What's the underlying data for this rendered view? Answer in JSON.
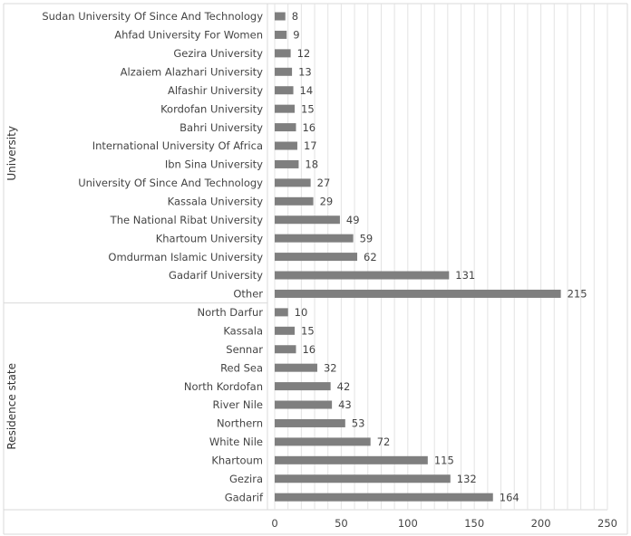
{
  "chart_data": {
    "type": "bar",
    "orientation": "horizontal",
    "grid": true,
    "xlim": [
      0,
      250
    ],
    "x_ticks": [
      "0",
      "50",
      "100",
      "150",
      "200",
      "250"
    ],
    "bar_color": "#7f7f7f",
    "groups": [
      {
        "name": "University",
        "categories": [
          "Sudan University Of Since And Technology",
          "Ahfad University For Women",
          "Gezira University",
          "Alzaiem Alazhari University",
          "Alfashir University",
          "Kordofan University",
          "Bahri University",
          "International University Of Africa",
          "Ibn Sina University",
          "University Of Since And Technology",
          "Kassala University",
          "The National Ribat University",
          "Khartoum University",
          "Omdurman Islamic University",
          "Gadarif University",
          "Other"
        ],
        "values": [
          8,
          9,
          12,
          13,
          14,
          15,
          16,
          17,
          18,
          27,
          29,
          49,
          59,
          62,
          131,
          215
        ]
      },
      {
        "name": "Residence state",
        "categories": [
          "North Darfur",
          "Kassala",
          "Sennar",
          "Red Sea",
          "North Kordofan",
          "River Nile",
          "Northern",
          "White Nile",
          "Khartoum",
          "Gezira",
          "Gadarif"
        ],
        "values": [
          10,
          15,
          16,
          32,
          42,
          43,
          53,
          72,
          115,
          132,
          164
        ]
      }
    ]
  }
}
